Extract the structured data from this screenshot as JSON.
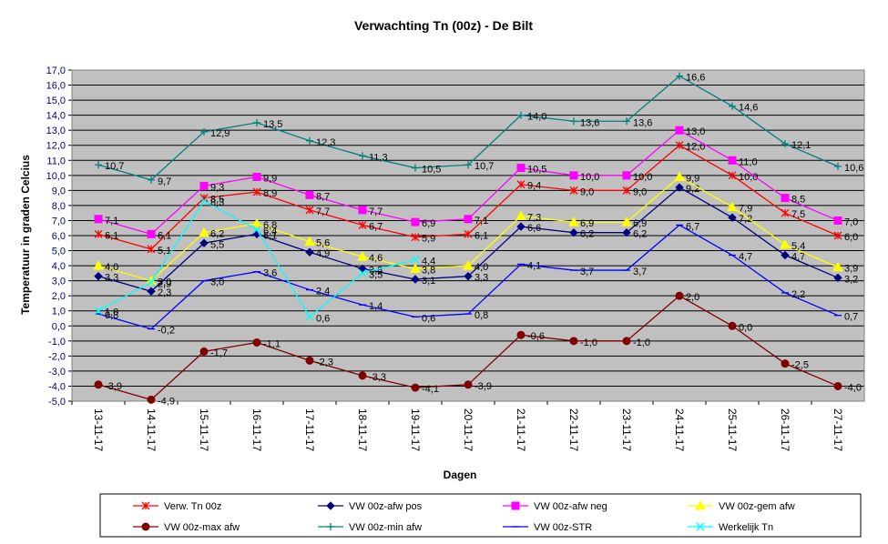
{
  "chart_data": {
    "type": "line",
    "title": "Verwachting Tn (00z) - De Bilt",
    "x_label": "Dagen",
    "y_label": "Temperatuur in graden Celcius",
    "categories": [
      "13-11-17",
      "14-11-17",
      "15-11-17",
      "16-11-17",
      "17-11-17",
      "18-11-17",
      "19-11-17",
      "20-11-17",
      "21-11-17",
      "22-11-17",
      "23-11-17",
      "24-11-17",
      "25-11-17",
      "26-11-17",
      "27-11-17"
    ],
    "ylim": [
      -5,
      17
    ],
    "yticks": [
      {
        "value": -5,
        "label": "-5,0"
      },
      {
        "value": -4,
        "label": "-4,0"
      },
      {
        "value": -3,
        "label": "-3,0"
      },
      {
        "value": -2,
        "label": "-2,0"
      },
      {
        "value": -1,
        "label": "-1,0"
      },
      {
        "value": 0,
        "label": "0,0"
      },
      {
        "value": 1,
        "label": "1,0"
      },
      {
        "value": 2,
        "label": "2,0"
      },
      {
        "value": 3,
        "label": "3,0"
      },
      {
        "value": 4,
        "label": "4,0"
      },
      {
        "value": 5,
        "label": "5,0"
      },
      {
        "value": 6,
        "label": "6,0"
      },
      {
        "value": 7,
        "label": "7,0"
      },
      {
        "value": 8,
        "label": "8,0"
      },
      {
        "value": 9,
        "label": "9,0"
      },
      {
        "value": 10,
        "label": "10,0"
      },
      {
        "value": 11,
        "label": "11,0"
      },
      {
        "value": 12,
        "label": "12,0"
      },
      {
        "value": 13,
        "label": "13,0"
      },
      {
        "value": 14,
        "label": "14,0"
      },
      {
        "value": 15,
        "label": "15,0"
      },
      {
        "value": 16,
        "label": "16,0"
      },
      {
        "value": 17,
        "label": "17,0"
      }
    ],
    "grid": true,
    "legend": "bottom",
    "series": [
      {
        "name": "Verw. Tn 00z",
        "color": "#ff0000",
        "marker": "asterisk",
        "values": [
          6.1,
          5.1,
          8.5,
          8.9,
          7.7,
          6.7,
          5.9,
          6.1,
          9.4,
          9.0,
          9.0,
          12.0,
          10.0,
          7.5,
          6.0
        ],
        "value_labels": [
          "6,1",
          "5,1",
          "8,5",
          "8,9",
          "7,7",
          "6,7",
          "5,9",
          "6,1",
          "9,4",
          "9,0",
          "9,0",
          "12,0",
          "10,0",
          "7,5",
          "6,0"
        ]
      },
      {
        "name": "VW 00z-afw pos",
        "color": "#000080",
        "marker": "diamond",
        "values": [
          3.3,
          2.3,
          5.5,
          6.1,
          4.9,
          3.8,
          3.1,
          3.3,
          6.6,
          6.2,
          6.2,
          9.2,
          7.2,
          4.7,
          3.2
        ],
        "value_labels": [
          "3,3",
          "2,3",
          "5,5",
          "6,1",
          "4,9",
          "3,8",
          "3,1",
          "3,3",
          "6,6",
          "6,2",
          "6,2",
          "9,2",
          "7,2",
          "4,7",
          "3,2"
        ]
      },
      {
        "name": "VW 00z-afw neg",
        "color": "#ff00ff",
        "marker": "square",
        "values": [
          7.1,
          6.1,
          9.3,
          9.9,
          8.7,
          7.7,
          6.9,
          7.1,
          10.5,
          10.0,
          10.0,
          13.0,
          11.0,
          8.5,
          7.0
        ],
        "value_labels": [
          "7,1",
          "6,1",
          "9,3",
          "9,9",
          "8,7",
          "7,7",
          "6,9",
          "7,1",
          "10,5",
          "10,0",
          "10,0",
          "13,0",
          "11,0",
          "8,5",
          "7,0"
        ]
      },
      {
        "name": "VW 00z-gem afw",
        "color": "#ffff00",
        "marker": "triangle",
        "values": [
          4.0,
          3.0,
          6.2,
          6.8,
          5.6,
          4.6,
          3.8,
          4.0,
          7.3,
          6.9,
          6.9,
          9.9,
          7.9,
          5.4,
          3.9
        ],
        "value_labels": [
          "4,0",
          "3,0",
          "6,2",
          "6,8",
          "5,6",
          "4,6",
          "3,8",
          "4,0",
          "7,3",
          "6,9",
          "6,9",
          "9,9",
          "7,9",
          "5,4",
          "3,9"
        ]
      },
      {
        "name": "VW 00z-max afw",
        "color": "#800000",
        "marker": "circle",
        "values": [
          -3.9,
          -4.9,
          -1.7,
          -1.1,
          -2.3,
          -3.3,
          -4.1,
          -3.9,
          -0.6,
          -1.0,
          -1.0,
          2.0,
          0.0,
          -2.5,
          -4.0
        ],
        "value_labels": [
          "-3,9",
          "-4,9",
          "-1,7",
          "-1,1",
          "-2,3",
          "-3,3",
          "-4,1",
          "-3,9",
          "-0,6",
          "-1,0",
          "-1,0",
          "2,0",
          "0,0",
          "-2,5",
          "-4,0"
        ]
      },
      {
        "name": "VW 00z-min afw",
        "color": "#008080",
        "marker": "plus",
        "values": [
          10.7,
          9.7,
          12.9,
          13.5,
          12.3,
          11.3,
          10.5,
          10.7,
          14.0,
          13.6,
          13.6,
          16.6,
          14.6,
          12.1,
          10.6
        ],
        "value_labels": [
          "10,7",
          "9,7",
          "12,9",
          "13,5",
          "12,3",
          "11,3",
          "10,5",
          "10,7",
          "14,0",
          "13,6",
          "13,6",
          "16,6",
          "14,6",
          "12,1",
          "10,6"
        ]
      },
      {
        "name": "VW 00z-STR",
        "color": "#0000ff",
        "marker": "dash",
        "values": [
          0.8,
          -0.2,
          3.0,
          3.6,
          2.4,
          1.4,
          0.6,
          0.8,
          4.1,
          3.7,
          3.7,
          6.7,
          4.7,
          2.2,
          0.7
        ],
        "value_labels": [
          "0,8",
          "-0,2",
          "3,0",
          "3,6",
          "2,4",
          "1,4",
          "0,6",
          "0,8",
          "4,1",
          "3,7",
          "3,7",
          "6,7",
          "4,7",
          "2,2",
          "0,7"
        ]
      },
      {
        "name": "Werkelijk Tn",
        "color": "#00ffff",
        "marker": "x",
        "values": [
          1.0,
          2.9,
          8.3,
          6.4,
          0.6,
          3.5,
          4.4,
          null,
          null,
          null,
          null,
          null,
          null,
          null,
          null
        ],
        "value_labels": [
          "1,0",
          "2,9",
          "8,3",
          "6,4",
          "0,6",
          "3,5",
          "4,4",
          null,
          null,
          null,
          null,
          null,
          null,
          null,
          null
        ]
      }
    ]
  }
}
